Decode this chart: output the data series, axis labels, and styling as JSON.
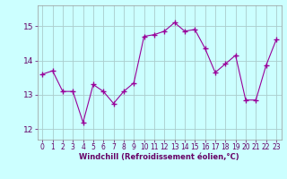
{
  "x": [
    0,
    1,
    2,
    3,
    4,
    5,
    6,
    7,
    8,
    9,
    10,
    11,
    12,
    13,
    14,
    15,
    16,
    17,
    18,
    19,
    20,
    21,
    22,
    23
  ],
  "y": [
    13.6,
    13.7,
    13.1,
    13.1,
    12.2,
    13.3,
    13.1,
    12.75,
    13.1,
    13.35,
    14.7,
    14.75,
    14.85,
    15.1,
    14.85,
    14.9,
    14.35,
    13.65,
    13.9,
    14.15,
    12.85,
    12.85,
    13.85,
    14.6
  ],
  "line_color": "#990099",
  "marker": "+",
  "marker_size": 4,
  "marker_lw": 1.0,
  "line_width": 0.8,
  "bg_color": "#ccffff",
  "grid_color": "#aacccc",
  "xlabel": "Windchill (Refroidissement éolien,°C)",
  "xlabel_color": "#660066",
  "tick_color": "#660066",
  "yticks": [
    12,
    13,
    14,
    15
  ],
  "ylim": [
    11.7,
    15.6
  ],
  "xlim": [
    -0.5,
    23.5
  ],
  "xticks": [
    0,
    1,
    2,
    3,
    4,
    5,
    6,
    7,
    8,
    9,
    10,
    11,
    12,
    13,
    14,
    15,
    16,
    17,
    18,
    19,
    20,
    21,
    22,
    23
  ],
  "tick_fontsize": 5.5,
  "xlabel_fontsize": 6.0,
  "ytick_fontsize": 6.5
}
